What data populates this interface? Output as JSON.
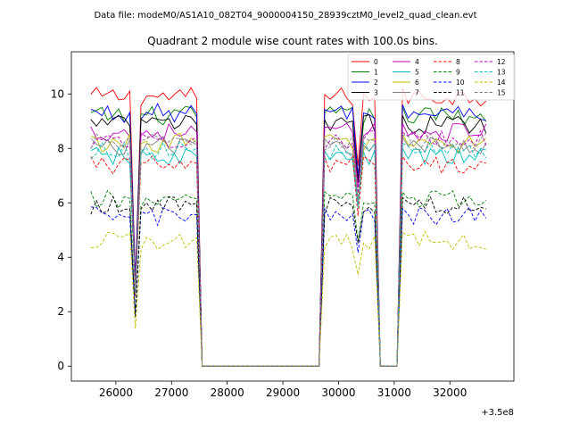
{
  "suptitle": "Data file: modeM0/AS1A10_082T04_9000004150_28939cztM0_level2_quad_clean.evt",
  "chart_data": {
    "type": "line",
    "title": "Quadrant 2 module wise count rates with 100.0s bins.",
    "xlabel": "",
    "ylabel": "",
    "x_offset_label": "+3.5e8",
    "xlim": [
      25200,
      33150
    ],
    "ylim": [
      -0.55,
      11.55
    ],
    "xticks": [
      26000,
      27000,
      28000,
      29000,
      30000,
      31000,
      32000
    ],
    "yticks": [
      0,
      2,
      4,
      6,
      8,
      10
    ],
    "grid": false,
    "legend": {
      "placement": "top-right",
      "ncol": 4
    },
    "segments": [
      {
        "x_start": 25550,
        "x_end": 26250
      },
      {
        "x_start": 26450,
        "x_end": 27450
      },
      {
        "x_start": 29750,
        "x_end": 30250
      },
      {
        "x_start": 30450,
        "x_end": 30650
      },
      {
        "x_start": 31150,
        "x_end": 32650
      }
    ],
    "dips": [
      {
        "x": 26350,
        "fraction": 0.33
      },
      {
        "x": 30350,
        "fraction": 0.75
      }
    ],
    "series": [
      {
        "name": "0",
        "color": "#ff0000",
        "dash": "solid",
        "level": 9.9
      },
      {
        "name": "1",
        "color": "#008000",
        "dash": "solid",
        "level": 9.2
      },
      {
        "name": "2",
        "color": "#0000ff",
        "dash": "solid",
        "level": 9.3
      },
      {
        "name": "3",
        "color": "#000000",
        "dash": "solid",
        "level": 8.9
      },
      {
        "name": "4",
        "color": "#bf00bf",
        "dash": "solid",
        "level": 8.6
      },
      {
        "name": "5",
        "color": "#00bfbf",
        "dash": "solid",
        "level": 7.7
      },
      {
        "name": "6",
        "color": "#bfbf00",
        "dash": "solid",
        "level": 8.2
      },
      {
        "name": "7",
        "color": "#808080",
        "dash": "solid",
        "level": 8.1
      },
      {
        "name": "8",
        "color": "#ff0000",
        "dash": "dashed",
        "level": 7.4
      },
      {
        "name": "9",
        "color": "#008000",
        "dash": "dashed",
        "level": 6.1
      },
      {
        "name": "10",
        "color": "#0000ff",
        "dash": "dashed",
        "level": 5.5
      },
      {
        "name": "11",
        "color": "#000000",
        "dash": "dashed",
        "level": 5.9
      },
      {
        "name": "12",
        "color": "#bf00bf",
        "dash": "dashed",
        "level": 8.3
      },
      {
        "name": "13",
        "color": "#00bfbf",
        "dash": "dashed",
        "level": 7.9
      },
      {
        "name": "14",
        "color": "#bfbf00",
        "dash": "dashed",
        "level": 4.6
      },
      {
        "name": "15",
        "color": "#808080",
        "dash": "dashed",
        "level": 8.2
      }
    ]
  }
}
